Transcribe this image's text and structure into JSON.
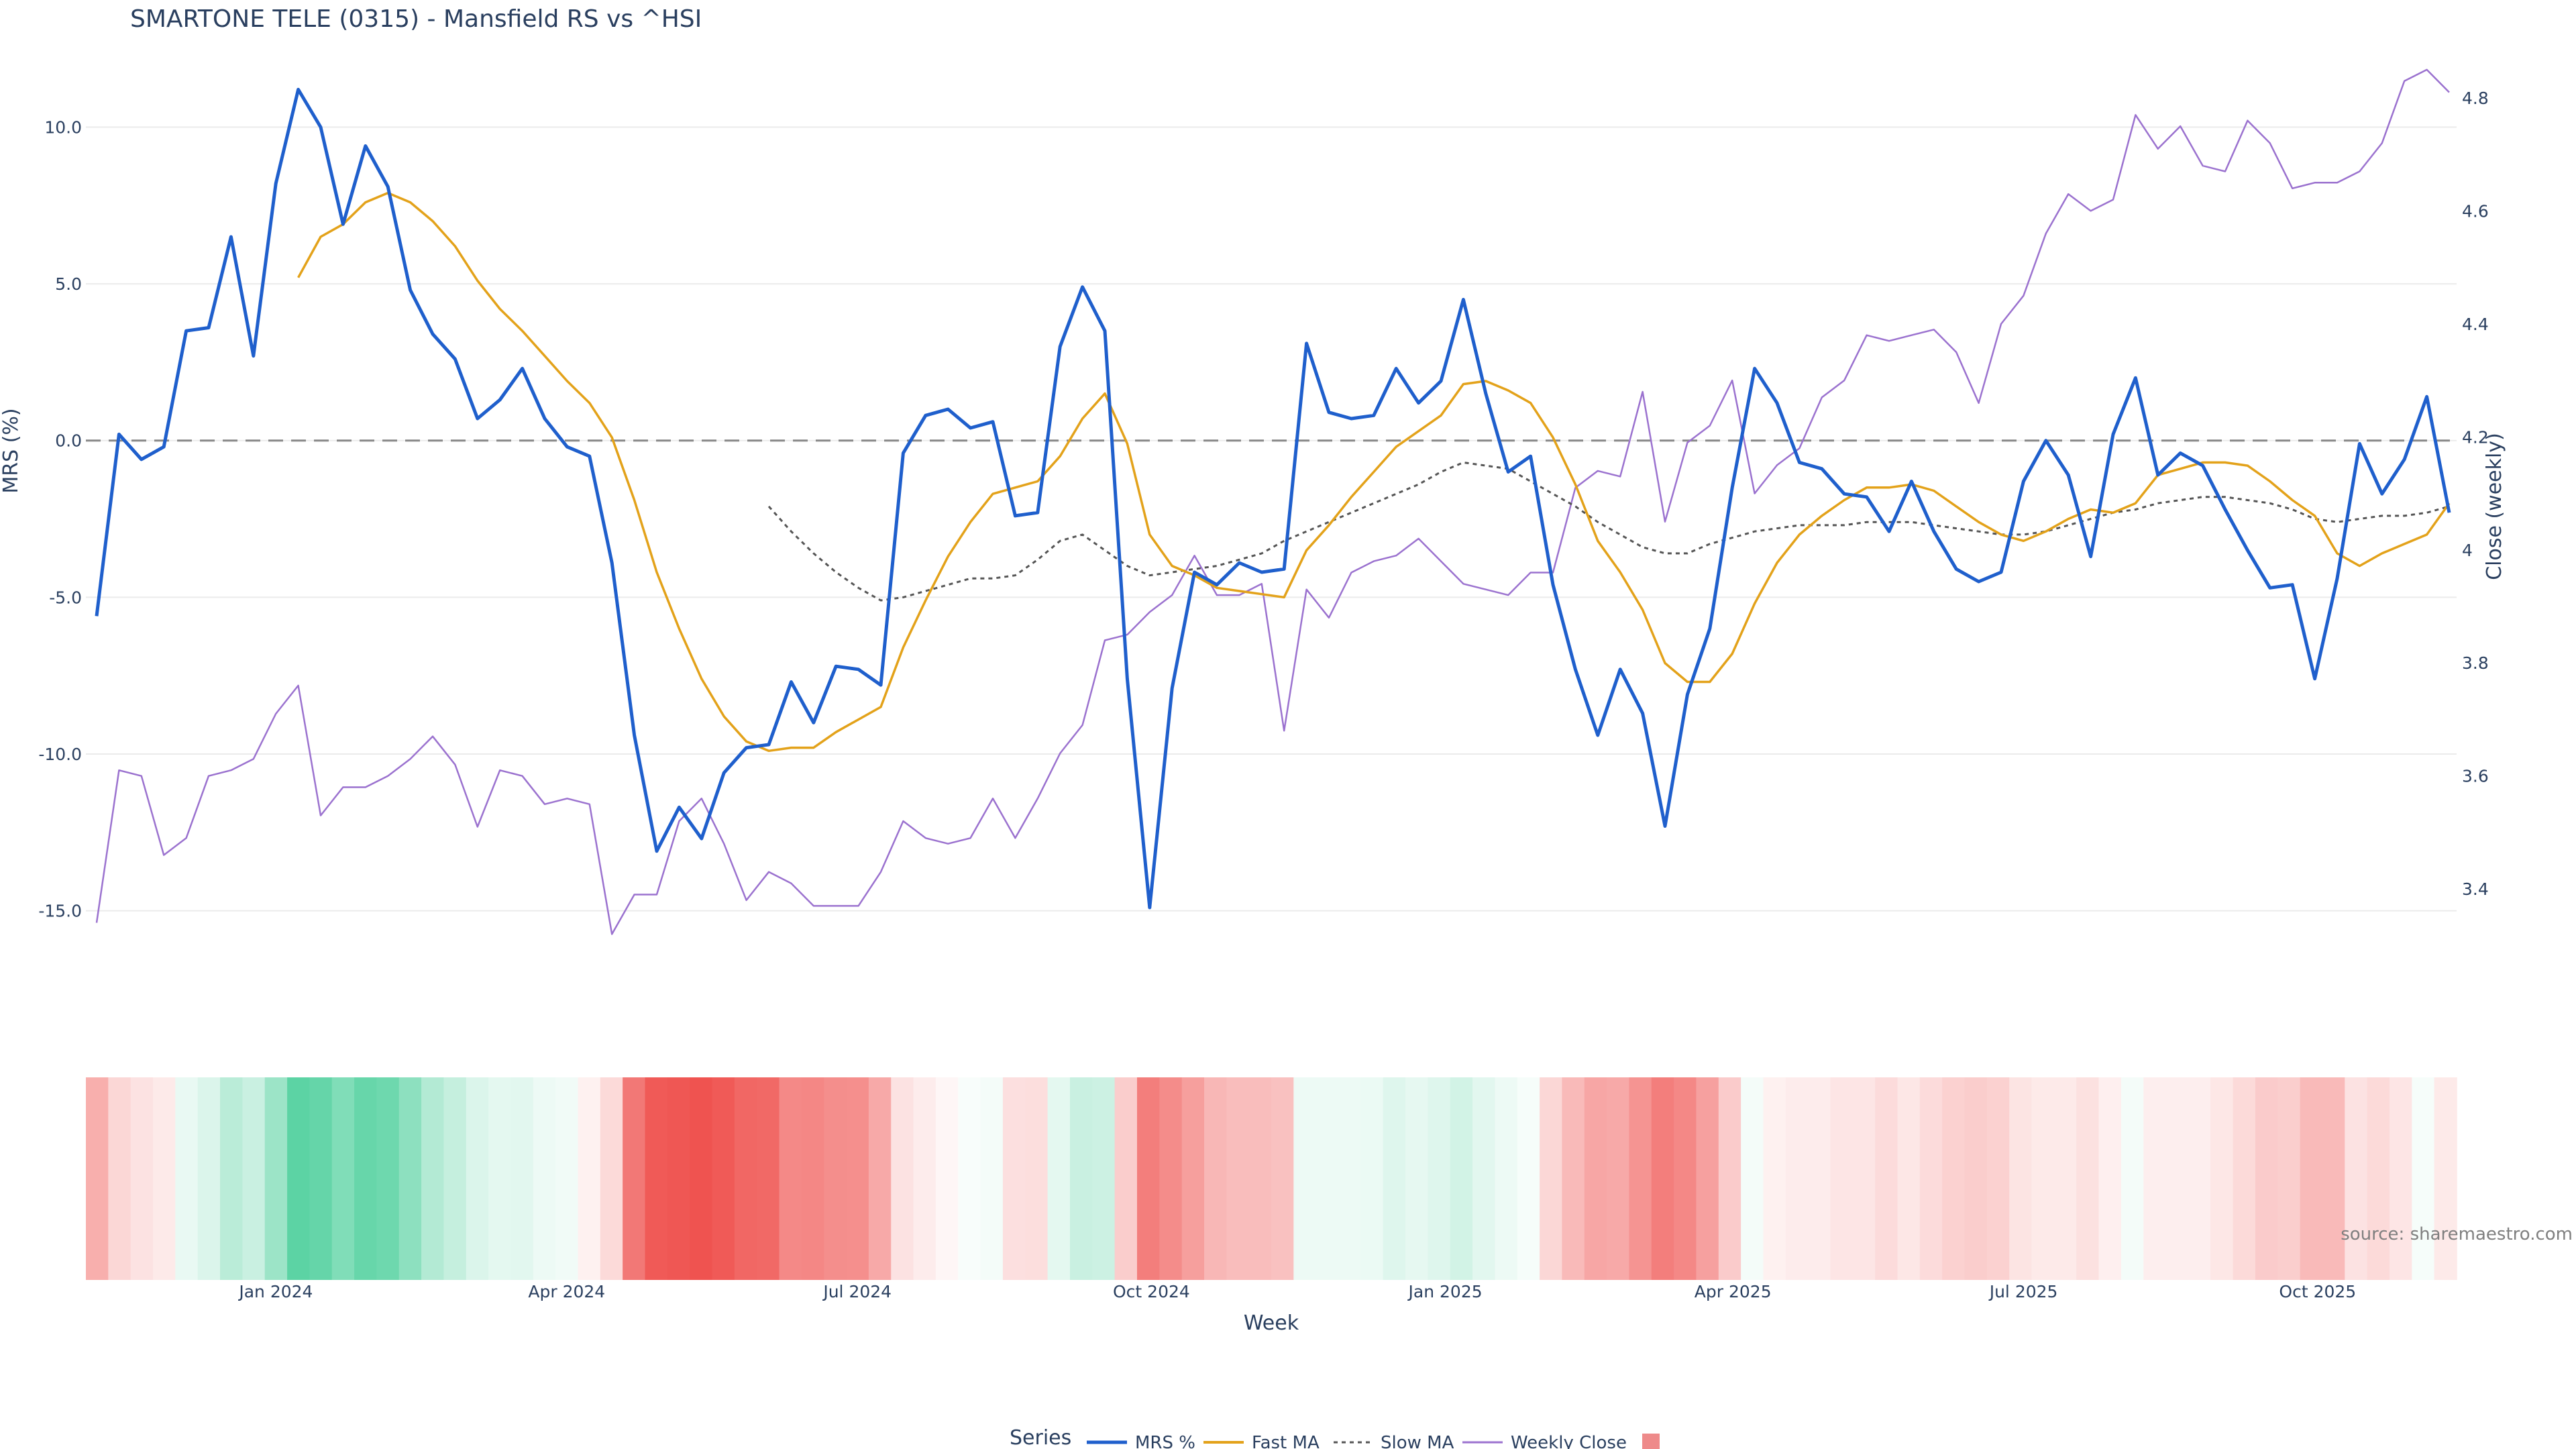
{
  "title": "SMARTONE TELE (0315) - Mansfield RS vs ^HSI",
  "source": "source: sharemaestro.com",
  "legend": {
    "title": "Series",
    "items": [
      "MRS %",
      "Fast MA",
      "Slow MA",
      "Weekly Close",
      ""
    ]
  },
  "colors": {
    "mrs": "#1f5fcc",
    "fast_ma": "#e3a21a",
    "slow_ma": "#555555",
    "weekly_close": "#9b72cf",
    "legend_box": "#ee8a8a"
  },
  "chart_data": [
    {
      "type": "line",
      "title": "SMARTONE TELE (0315) - Mansfield RS vs ^HSI",
      "ylabel": "MRS (%)",
      "y2label": "Close (weekly)",
      "ylim": [
        -15.8,
        12.3
      ],
      "y2lim": [
        3.317,
        4.876
      ],
      "yticks": [
        "10.0",
        "5.0",
        "0.0",
        "-5.0",
        "-10.0",
        "-15.0"
      ],
      "y2ticks": [
        "4.8",
        "4.6",
        "4.4",
        "4.2",
        "4",
        "3.8",
        "3.6",
        "3.4"
      ],
      "grid": true,
      "zero_line": "dashed",
      "legend_position": "bottom",
      "x_start": "2023-11-06",
      "x_step_days": 7,
      "series": [
        {
          "name": "MRS %",
          "axis": "left",
          "values": [
            -5.6,
            0.2,
            -0.6,
            -0.2,
            3.5,
            3.6,
            6.5,
            2.7,
            8.2,
            11.2,
            10.0,
            6.9,
            9.4,
            8.1,
            4.8,
            3.4,
            2.6,
            0.7,
            1.3,
            2.3,
            0.7,
            -0.2,
            -0.5,
            -3.9,
            -9.4,
            -13.1,
            -11.7,
            -12.7,
            -10.6,
            -9.8,
            -9.7,
            -7.7,
            -9.0,
            -7.2,
            -7.3,
            -7.8,
            -0.4,
            0.8,
            1.0,
            0.4,
            0.6,
            -2.4,
            -2.3,
            3.0,
            4.9,
            3.5,
            -7.6,
            -14.9,
            -7.9,
            -4.2,
            -4.6,
            -3.9,
            -4.2,
            -4.1,
            3.1,
            0.9,
            0.7,
            0.8,
            2.3,
            1.2,
            1.9,
            4.5,
            1.5,
            -1.0,
            -0.5,
            -4.6,
            -7.3,
            -9.4,
            -7.3,
            -8.7,
            -12.3,
            -8.1,
            -6.0,
            -1.5,
            2.3,
            1.2,
            -0.7,
            -0.9,
            -1.7,
            -1.8,
            -2.9,
            -1.3,
            -2.9,
            -4.1,
            -4.5,
            -4.2,
            -1.3,
            0.0,
            -1.1,
            -3.7,
            0.2,
            2.0,
            -1.1,
            -0.4,
            -0.8,
            -2.2,
            -3.5,
            -4.7,
            -4.6,
            -7.6,
            -4.4,
            -0.1,
            -1.7,
            -0.6,
            1.4,
            -2.3
          ]
        },
        {
          "name": "Fast MA",
          "axis": "left",
          "values": [
            null,
            null,
            null,
            null,
            null,
            null,
            null,
            null,
            null,
            5.2,
            6.5,
            6.9,
            7.6,
            7.9,
            7.6,
            7.0,
            6.2,
            5.1,
            4.2,
            3.5,
            2.7,
            1.9,
            1.2,
            0.1,
            -1.9,
            -4.2,
            -6.0,
            -7.6,
            -8.8,
            -9.6,
            -9.9,
            -9.8,
            -9.8,
            -9.3,
            -8.9,
            -8.5,
            -6.6,
            -5.1,
            -3.7,
            -2.6,
            -1.7,
            -1.5,
            -1.3,
            -0.5,
            0.7,
            1.5,
            -0.1,
            -3.0,
            -4.0,
            -4.3,
            -4.7,
            -4.8,
            -4.9,
            -5.0,
            -3.5,
            -2.7,
            -1.8,
            -1.0,
            -0.2,
            0.3,
            0.8,
            1.8,
            1.9,
            1.6,
            1.2,
            0.1,
            -1.4,
            -3.2,
            -4.2,
            -5.4,
            -7.1,
            -7.7,
            -7.7,
            -6.8,
            -5.2,
            -3.9,
            -3.0,
            -2.4,
            -1.9,
            -1.5,
            -1.5,
            -1.4,
            -1.6,
            -2.1,
            -2.6,
            -3.0,
            -3.2,
            -2.9,
            -2.5,
            -2.2,
            -2.3,
            -2.0,
            -1.1,
            -0.9,
            -0.7,
            -0.7,
            -0.8,
            -1.3,
            -1.9,
            -2.4,
            -3.6,
            -4.0,
            -3.6,
            -3.3,
            -3.0,
            -2.0
          ]
        },
        {
          "name": "Slow MA",
          "axis": "left",
          "values": [
            null,
            null,
            null,
            null,
            null,
            null,
            null,
            null,
            null,
            null,
            null,
            null,
            null,
            null,
            null,
            null,
            null,
            null,
            null,
            null,
            null,
            null,
            null,
            null,
            null,
            null,
            null,
            null,
            null,
            null,
            -2.1,
            -2.9,
            -3.6,
            -4.2,
            -4.7,
            -5.1,
            -5.0,
            -4.8,
            -4.6,
            -4.4,
            -4.4,
            -4.3,
            -3.8,
            -3.2,
            -3.0,
            -3.5,
            -4.0,
            -4.3,
            -4.2,
            -4.1,
            -4.0,
            -3.8,
            -3.6,
            -3.2,
            -2.9,
            -2.6,
            -2.3,
            -2.0,
            -1.7,
            -1.4,
            -1.0,
            -0.7,
            -0.8,
            -0.9,
            -1.3,
            -1.7,
            -2.1,
            -2.6,
            -3.0,
            -3.4,
            -3.6,
            -3.6,
            -3.3,
            -3.1,
            -2.9,
            -2.8,
            -2.7,
            -2.7,
            -2.7,
            -2.6,
            -2.6,
            -2.6,
            -2.7,
            -2.8,
            -2.9,
            -3.0,
            -3.0,
            -2.9,
            -2.7,
            -2.5,
            -2.3,
            -2.2,
            -2.0,
            -1.9,
            -1.8,
            -1.8,
            -1.9,
            -2.0,
            -2.2,
            -2.5,
            -2.6,
            -2.5,
            -2.4,
            -2.4,
            -2.3,
            -2.1
          ]
        },
        {
          "name": "Weekly Close",
          "axis": "right",
          "values": [
            3.34,
            3.61,
            3.6,
            3.46,
            3.49,
            3.6,
            3.61,
            3.63,
            3.71,
            3.76,
            3.53,
            3.58,
            3.58,
            3.6,
            3.63,
            3.67,
            3.62,
            3.51,
            3.61,
            3.6,
            3.55,
            3.56,
            3.55,
            3.32,
            3.39,
            3.39,
            3.52,
            3.56,
            3.48,
            3.38,
            3.43,
            3.41,
            3.37,
            3.37,
            3.37,
            3.43,
            3.52,
            3.49,
            3.48,
            3.49,
            3.56,
            3.49,
            3.56,
            3.64,
            3.69,
            3.84,
            3.85,
            3.89,
            3.92,
            3.99,
            3.92,
            3.92,
            3.94,
            3.68,
            3.93,
            3.88,
            3.96,
            3.98,
            3.99,
            4.02,
            3.98,
            3.94,
            3.93,
            3.92,
            3.96,
            3.96,
            4.11,
            4.14,
            4.13,
            4.28,
            4.05,
            4.19,
            4.22,
            4.3,
            4.1,
            4.15,
            4.18,
            4.27,
            4.3,
            4.38,
            4.37,
            4.38,
            4.39,
            4.35,
            4.26,
            4.4,
            4.45,
            4.56,
            4.63,
            4.6,
            4.62,
            4.77,
            4.71,
            4.75,
            4.68,
            4.67,
            4.76,
            4.72,
            4.64,
            4.65,
            4.65,
            4.67,
            4.72,
            4.83,
            4.85,
            4.81
          ]
        }
      ]
    },
    {
      "type": "heatmap",
      "xlabel": "Week",
      "xticks": [
        "Jan 2024",
        "Apr 2024",
        "Jul 2024",
        "Oct 2024",
        "Jan 2025",
        "Apr 2025",
        "Jul 2025",
        "Oct 2025"
      ],
      "xtick_dates": [
        "2024-01-01",
        "2024-04-01",
        "2024-07-01",
        "2024-10-01",
        "2025-01-01",
        "2025-04-01",
        "2025-07-01",
        "2025-10-01"
      ],
      "colorscale": [
        "#ef5350",
        "#ffffff",
        "#26c485"
      ],
      "zrange": [
        -12,
        12
      ],
      "values": [
        -5.6,
        -2.8,
        -2.0,
        -1.5,
        1.2,
        2.0,
        3.8,
        3.0,
        5.5,
        9.0,
        8.5,
        7.0,
        8.4,
        8.0,
        6.3,
        4.2,
        3.2,
        2.0,
        1.5,
        1.6,
        1.0,
        0.8,
        -1.0,
        -2.6,
        -9.4,
        -11.5,
        -11.7,
        -12.2,
        -11.5,
        -10.6,
        -10.5,
        -8.2,
        -8.4,
        -7.9,
        -7.8,
        -6.0,
        -2.0,
        -1.3,
        -0.6,
        0.4,
        0.6,
        -2.2,
        -2.3,
        1.5,
        3.0,
        2.8,
        -3.5,
        -9.0,
        -8.0,
        -6.7,
        -5.0,
        -4.6,
        -4.6,
        -4.3,
        1.0,
        1.0,
        1.0,
        1.1,
        1.8,
        1.4,
        1.8,
        2.5,
        1.6,
        1.0,
        0.5,
        -2.8,
        -4.8,
        -6.2,
        -6.0,
        -7.5,
        -9.0,
        -8.3,
        -6.6,
        -3.6,
        0.6,
        -1.0,
        -1.3,
        -1.3,
        -1.8,
        -1.8,
        -2.5,
        -1.7,
        -2.5,
        -3.2,
        -3.5,
        -3.2,
        -1.9,
        -1.5,
        -1.5,
        -2.1,
        -1.1,
        0.6,
        -1.2,
        -1.2,
        -1.2,
        -1.7,
        -2.6,
        -3.6,
        -3.4,
        -4.8,
        -4.8,
        -2.0,
        -2.6,
        -1.8,
        0.5,
        -1.5
      ]
    }
  ]
}
